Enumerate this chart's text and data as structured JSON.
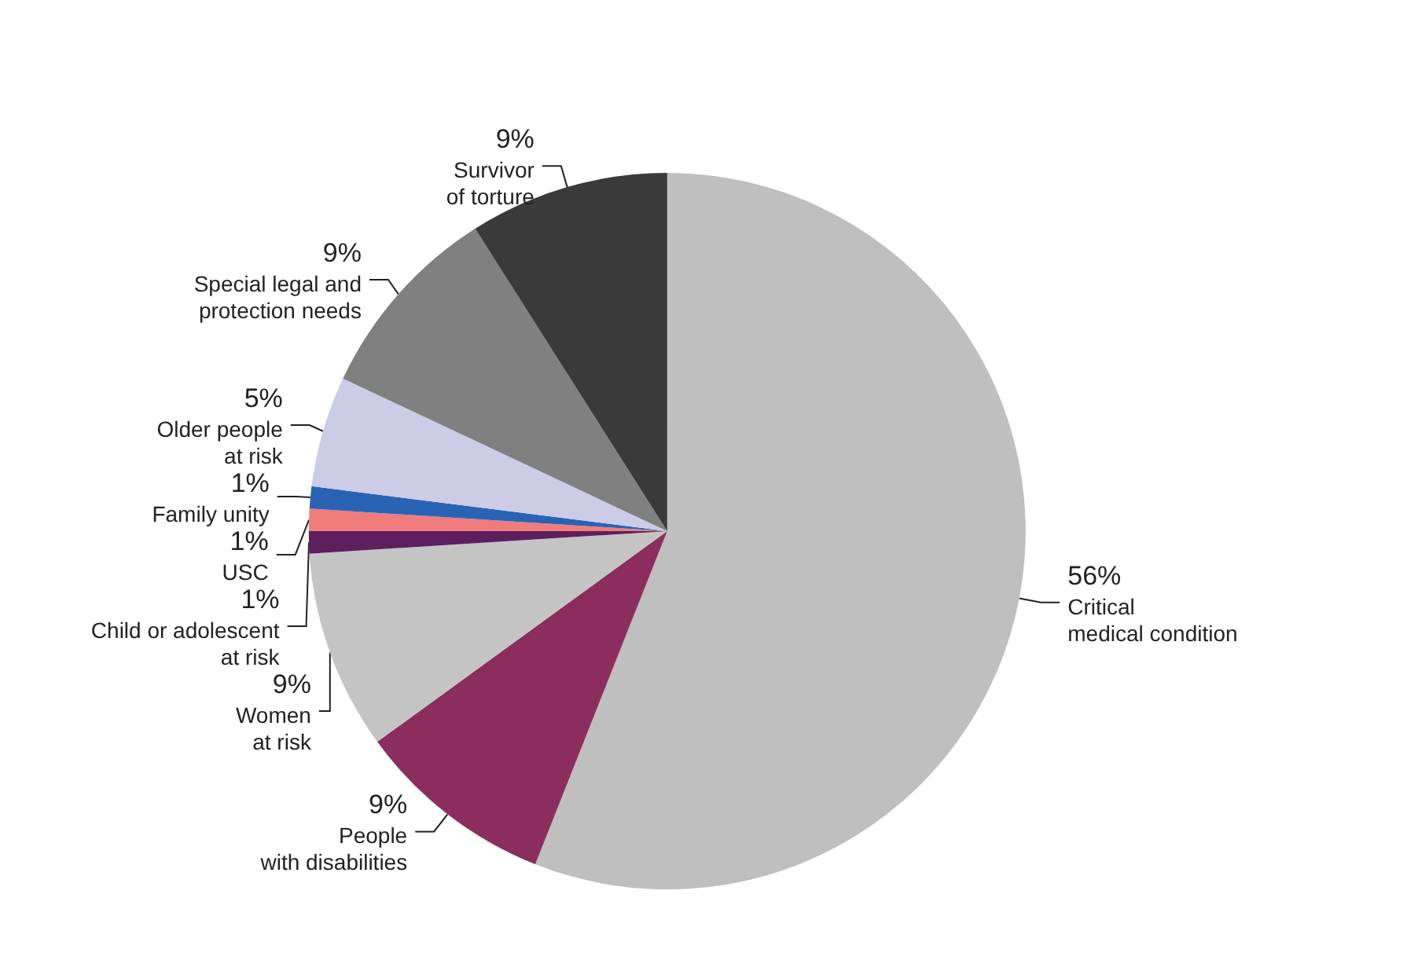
{
  "chart_data": {
    "type": "pie",
    "categories": [
      "Critical medical condition",
      "People with disabilities",
      "Women at risk",
      "Child or adolescent at risk",
      "USC",
      "Family unity",
      "Older people at risk",
      "Special legal and protection needs",
      "Survivor of torture"
    ],
    "values": [
      56,
      9,
      9,
      1,
      1,
      1,
      5,
      9,
      9
    ],
    "colors": [
      "#bfbfbf",
      "#8b2e5e",
      "#c4c4c4",
      "#5e1f5e",
      "#f07c7c",
      "#2a63b4",
      "#cccce6",
      "#808080",
      "#3a3a3a"
    ],
    "value_labels": [
      "56%",
      "9%",
      "9%",
      "1%",
      "1%",
      "1%",
      "5%",
      "9%",
      "9%"
    ]
  }
}
